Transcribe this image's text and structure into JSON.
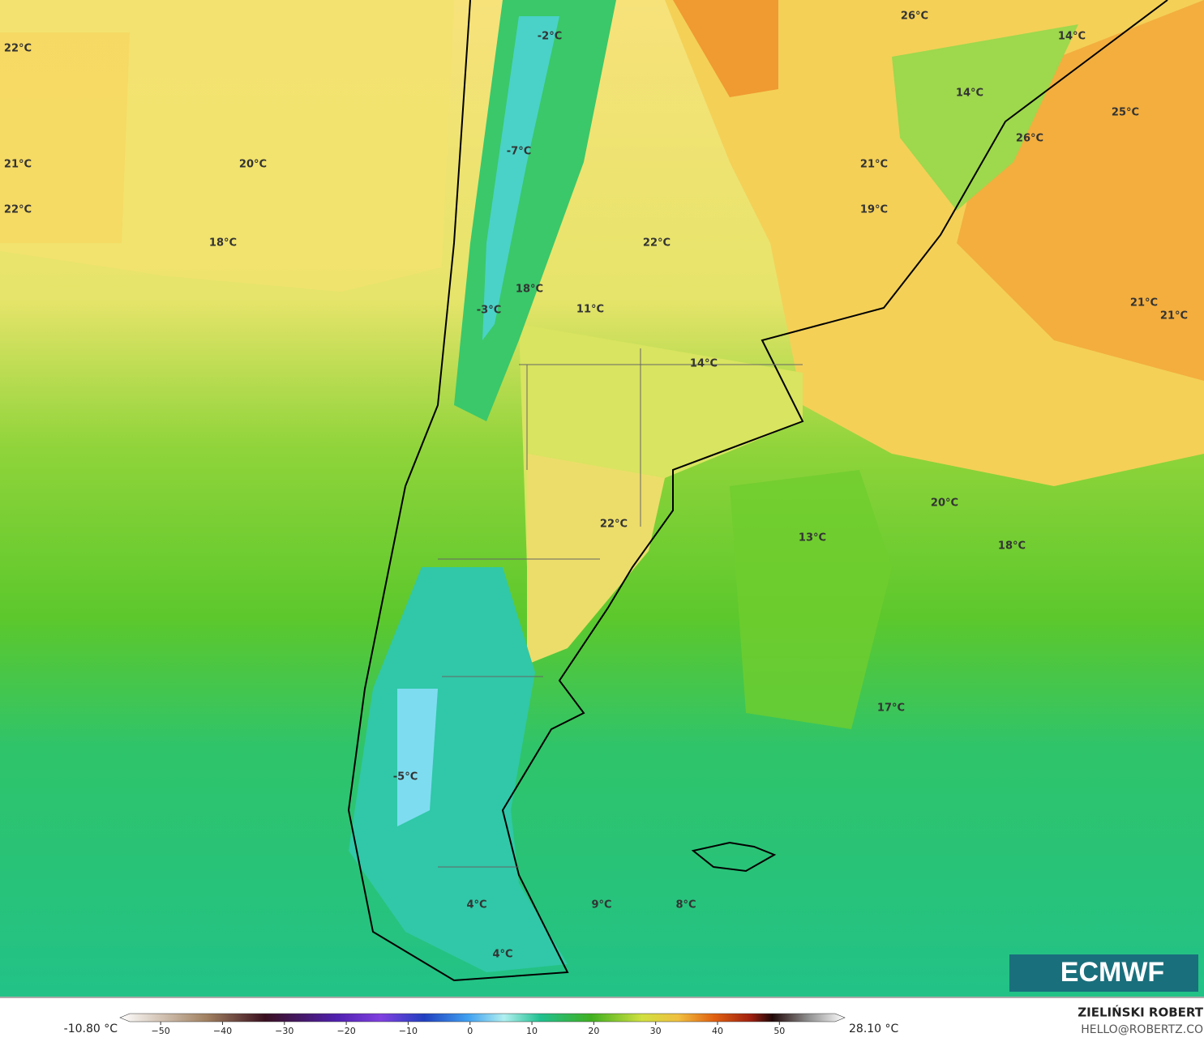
{
  "map": {
    "labels": [
      "22°C",
      "21°C",
      "22°C",
      "20°C",
      "18°C",
      "-2°C",
      "-7°C",
      "18°C",
      "-3°C",
      "11°C",
      "22°C",
      "14°C",
      "26°C",
      "14°C",
      "14°C",
      "25°C",
      "26°C",
      "21°C",
      "19°C",
      "21°C",
      "21°C",
      "20°C",
      "18°C",
      "13°C",
      "22°C",
      "17°C",
      "-5°C",
      "4°C",
      "9°C",
      "8°C",
      "4°C"
    ],
    "logo": "ECMWF"
  },
  "colorbar": {
    "min_label": "-10.80 °C",
    "max_label": "28.10 °C",
    "xlim": [
      -55,
      59
    ],
    "xticks": [
      {
        "value": -50,
        "label": "−50"
      },
      {
        "value": -40,
        "label": "−40"
      },
      {
        "value": -30,
        "label": "−30"
      },
      {
        "value": -20,
        "label": "−20"
      },
      {
        "value": -10,
        "label": "−10"
      },
      0,
      10,
      20,
      30,
      40,
      50
    ]
  },
  "credits": {
    "author": "ZIELIŃSKI ROBERT",
    "contact": "HELLO@ROBERTZ.CO"
  }
}
